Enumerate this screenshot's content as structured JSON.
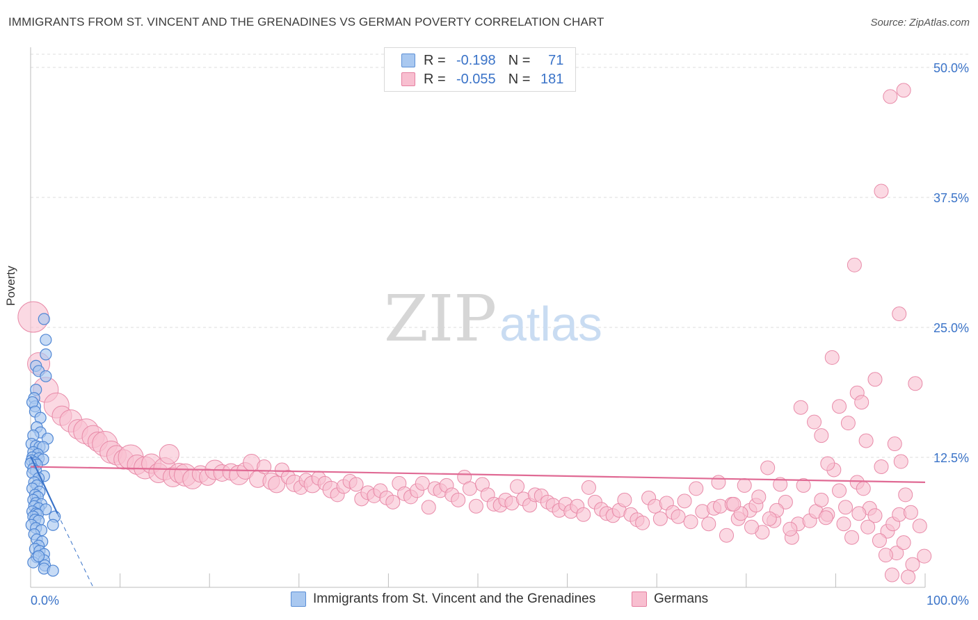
{
  "header": {
    "title": "IMMIGRANTS FROM ST. VINCENT AND THE GRENADINES VS GERMAN POVERTY CORRELATION CHART",
    "source": "Source: ZipAtlas.com"
  },
  "watermark": {
    "zip": "ZIP",
    "atlas": "atlas"
  },
  "legend": {
    "r_label": "R =",
    "n_label": "N =",
    "series": [
      {
        "r": "-0.198",
        "n": "71",
        "color": "#a9c8f0",
        "border": "#5b8fd6"
      },
      {
        "r": "-0.055",
        "n": "181",
        "color": "#f8bfd0",
        "border": "#e57fa0"
      }
    ]
  },
  "chart_data": {
    "type": "scatter",
    "ylabel": "Poverty",
    "xlim": [
      0,
      100
    ],
    "ylim": [
      0,
      50
    ],
    "x_tick_labels": [
      "0.0%",
      "100.0%"
    ],
    "y_ticks": [
      12.5,
      25.0,
      37.5,
      50.0
    ],
    "y_tick_labels": [
      "12.5%",
      "25.0%",
      "37.5%",
      "50.0%"
    ],
    "grid": "horizontal-dashed",
    "series": [
      {
        "name": "Immigrants from St. Vincent and the Grenadines",
        "color": "#a9c8f0",
        "stroke": "#4f86d4",
        "line_color": "#3a73c8",
        "trend": {
          "x": [
            0,
            3.0
          ],
          "y": [
            12.6,
            7.1
          ],
          "dashed_to": [
            7.0,
            0
          ]
        },
        "points": [
          [
            1.5,
            25.8
          ],
          [
            1.7,
            23.8
          ],
          [
            1.7,
            22.4
          ],
          [
            0.6,
            21.3
          ],
          [
            0.9,
            20.8
          ],
          [
            1.7,
            20.3
          ],
          [
            0.6,
            19.0
          ],
          [
            0.4,
            18.2
          ],
          [
            0.5,
            17.4
          ],
          [
            0.2,
            17.8
          ],
          [
            0.5,
            16.9
          ],
          [
            1.1,
            16.3
          ],
          [
            0.7,
            15.4
          ],
          [
            1.1,
            14.9
          ],
          [
            0.3,
            14.6
          ],
          [
            1.9,
            14.3
          ],
          [
            0.1,
            13.8
          ],
          [
            0.6,
            13.6
          ],
          [
            1.0,
            13.5
          ],
          [
            1.4,
            13.5
          ],
          [
            0.3,
            13.0
          ],
          [
            0.8,
            12.8
          ],
          [
            0.2,
            12.5
          ],
          [
            0.9,
            12.4
          ],
          [
            1.4,
            12.3
          ],
          [
            0.1,
            12.2
          ],
          [
            0.5,
            12.0
          ],
          [
            0.7,
            11.8
          ],
          [
            0.0,
            11.9
          ],
          [
            0.3,
            11.4
          ],
          [
            0.6,
            11.2
          ],
          [
            0.2,
            11.0
          ],
          [
            1.5,
            10.7
          ],
          [
            0.9,
            10.5
          ],
          [
            0.4,
            10.1
          ],
          [
            0.7,
            9.8
          ],
          [
            0.2,
            9.5
          ],
          [
            1.0,
            9.2
          ],
          [
            0.5,
            8.9
          ],
          [
            0.8,
            8.7
          ],
          [
            0.3,
            8.4
          ],
          [
            0.6,
            8.1
          ],
          [
            1.2,
            8.0
          ],
          [
            0.4,
            7.8
          ],
          [
            0.9,
            7.6
          ],
          [
            1.7,
            7.5
          ],
          [
            0.2,
            7.3
          ],
          [
            0.6,
            7.1
          ],
          [
            0.8,
            7.0
          ],
          [
            0.3,
            6.8
          ],
          [
            2.7,
            6.8
          ],
          [
            0.5,
            6.5
          ],
          [
            0.9,
            6.4
          ],
          [
            2.5,
            6.0
          ],
          [
            0.1,
            6.0
          ],
          [
            0.6,
            5.7
          ],
          [
            1.2,
            5.5
          ],
          [
            0.4,
            5.1
          ],
          [
            0.7,
            4.6
          ],
          [
            1.3,
            4.4
          ],
          [
            0.9,
            4.0
          ],
          [
            0.5,
            3.7
          ],
          [
            1.0,
            3.5
          ],
          [
            1.5,
            3.2
          ],
          [
            0.7,
            2.9
          ],
          [
            1.5,
            2.6
          ],
          [
            1.6,
            2.1
          ],
          [
            1.5,
            1.8
          ],
          [
            2.5,
            1.6
          ],
          [
            0.3,
            2.4
          ],
          [
            0.9,
            3.0
          ]
        ]
      },
      {
        "name": "Germans",
        "color": "#f8bfd0",
        "stroke": "#e88aa8",
        "line_color": "#e06a94",
        "trend": {
          "x": [
            0,
            100
          ],
          "y": [
            11.6,
            10.1
          ]
        },
        "points": [
          [
            0.3,
            26.0,
            22
          ],
          [
            0.9,
            21.5,
            16
          ],
          [
            1.7,
            19.0,
            18
          ],
          [
            2.9,
            17.5,
            18
          ],
          [
            3.5,
            16.5,
            14
          ],
          [
            4.5,
            16.0,
            16
          ],
          [
            5.3,
            15.2,
            14
          ],
          [
            6.2,
            15.0,
            18
          ],
          [
            7.0,
            14.5,
            16
          ],
          [
            7.5,
            14.0,
            14
          ],
          [
            8.3,
            13.8,
            18
          ],
          [
            9.0,
            13.0,
            16
          ],
          [
            9.6,
            12.7,
            14
          ],
          [
            10.4,
            12.3,
            14
          ],
          [
            11.2,
            12.5,
            18
          ],
          [
            11.9,
            11.8,
            14
          ],
          [
            12.8,
            11.5,
            16
          ],
          [
            13.5,
            11.9,
            14
          ],
          [
            14.3,
            11.0,
            14
          ],
          [
            15.0,
            11.4,
            16
          ],
          [
            15.9,
            10.6,
            14
          ],
          [
            16.6,
            11.0,
            14
          ],
          [
            17.3,
            10.8,
            16
          ],
          [
            18.1,
            10.4,
            14
          ],
          [
            15.5,
            12.8,
            14
          ],
          [
            19.0,
            10.9,
            12
          ],
          [
            19.8,
            10.6,
            12
          ],
          [
            20.6,
            11.3,
            14
          ],
          [
            21.4,
            11.0,
            12
          ],
          [
            22.4,
            11.1,
            12
          ],
          [
            23.3,
            10.8,
            14
          ],
          [
            24.0,
            11.2,
            12
          ],
          [
            24.7,
            12.0,
            12
          ],
          [
            25.4,
            10.4,
            12
          ],
          [
            26.1,
            11.6,
            10
          ],
          [
            26.9,
            10.2,
            12
          ],
          [
            27.5,
            9.9,
            12
          ],
          [
            28.1,
            11.3,
            10
          ],
          [
            28.8,
            10.6,
            10
          ],
          [
            29.5,
            10.0,
            12
          ],
          [
            30.2,
            9.6,
            10
          ],
          [
            30.8,
            10.3,
            10
          ],
          [
            31.5,
            9.9,
            12
          ],
          [
            32.2,
            10.5,
            10
          ],
          [
            32.9,
            10.0,
            10
          ],
          [
            33.6,
            9.4,
            12
          ],
          [
            34.3,
            8.9,
            10
          ],
          [
            35.0,
            9.7,
            10
          ],
          [
            35.7,
            10.2,
            10
          ],
          [
            36.4,
            9.9,
            10
          ],
          [
            37.0,
            8.5,
            10
          ],
          [
            37.7,
            9.1,
            10
          ],
          [
            38.4,
            8.8,
            10
          ],
          [
            39.1,
            9.3,
            10
          ],
          [
            39.8,
            8.6,
            10
          ],
          [
            40.5,
            8.2,
            10
          ],
          [
            41.2,
            10.0,
            10
          ],
          [
            41.8,
            9.0,
            10
          ],
          [
            42.5,
            8.7,
            10
          ],
          [
            43.2,
            9.3,
            10
          ],
          [
            43.8,
            10.0,
            10
          ],
          [
            44.5,
            7.7,
            10
          ],
          [
            45.2,
            9.5,
            10
          ],
          [
            45.8,
            9.3,
            10
          ],
          [
            46.5,
            9.8,
            10
          ],
          [
            47.1,
            8.9,
            10
          ],
          [
            47.8,
            8.4,
            10
          ],
          [
            48.5,
            10.6,
            10
          ],
          [
            49.1,
            9.5,
            10
          ],
          [
            49.8,
            7.8,
            10
          ],
          [
            50.5,
            9.9,
            10
          ],
          [
            51.1,
            8.9,
            10
          ],
          [
            51.8,
            8.0,
            10
          ],
          [
            52.5,
            7.9,
            10
          ],
          [
            53.1,
            8.4,
            10
          ],
          [
            53.8,
            8.1,
            10
          ],
          [
            54.4,
            9.7,
            10
          ],
          [
            55.1,
            8.5,
            10
          ],
          [
            55.8,
            7.9,
            10
          ],
          [
            56.4,
            8.9,
            10
          ],
          [
            57.1,
            8.8,
            10
          ],
          [
            57.8,
            8.2,
            10
          ],
          [
            58.4,
            7.9,
            10
          ],
          [
            59.1,
            7.4,
            10
          ],
          [
            59.8,
            8.0,
            10
          ],
          [
            60.4,
            7.3,
            10
          ],
          [
            61.1,
            7.8,
            10
          ],
          [
            61.8,
            7.0,
            10
          ],
          [
            62.4,
            9.6,
            10
          ],
          [
            63.1,
            8.2,
            10
          ],
          [
            63.8,
            7.5,
            10
          ],
          [
            64.4,
            7.1,
            10
          ],
          [
            65.1,
            6.9,
            10
          ],
          [
            65.8,
            7.4,
            10
          ],
          [
            66.4,
            8.4,
            10
          ],
          [
            67.1,
            7.0,
            10
          ],
          [
            67.8,
            6.5,
            10
          ],
          [
            68.4,
            6.2,
            10
          ],
          [
            69.1,
            8.6,
            10
          ],
          [
            69.8,
            7.8,
            10
          ],
          [
            70.4,
            6.6,
            10
          ],
          [
            71.1,
            8.1,
            10
          ],
          [
            71.8,
            7.2,
            10
          ],
          [
            72.4,
            6.8,
            10
          ],
          [
            73.1,
            8.3,
            10
          ],
          [
            73.8,
            6.3,
            10
          ],
          [
            74.4,
            9.5,
            10
          ],
          [
            75.1,
            7.3,
            10
          ],
          [
            75.8,
            6.1,
            10
          ],
          [
            76.4,
            7.6,
            10
          ],
          [
            77.1,
            7.8,
            10
          ],
          [
            77.8,
            5.0,
            10
          ],
          [
            78.4,
            8.0,
            10
          ],
          [
            79.1,
            6.6,
            10
          ],
          [
            79.8,
            9.8,
            10
          ],
          [
            80.4,
            7.4,
            10
          ],
          [
            81.1,
            7.9,
            10
          ],
          [
            81.8,
            5.3,
            10
          ],
          [
            82.4,
            11.5,
            10
          ],
          [
            83.1,
            6.4,
            10
          ],
          [
            83.8,
            9.9,
            10
          ],
          [
            84.4,
            8.2,
            10
          ],
          [
            85.1,
            4.8,
            10
          ],
          [
            85.8,
            6.1,
            10
          ],
          [
            86.4,
            9.8,
            10
          ],
          [
            87.1,
            6.4,
            10
          ],
          [
            87.8,
            7.3,
            10
          ],
          [
            88.4,
            8.4,
            10
          ],
          [
            89.1,
            7.0,
            10
          ],
          [
            89.8,
            11.3,
            10
          ],
          [
            90.4,
            9.3,
            10
          ],
          [
            91.1,
            7.7,
            10
          ],
          [
            91.8,
            4.8,
            10
          ],
          [
            92.4,
            10.1,
            10
          ],
          [
            93.1,
            9.5,
            10
          ],
          [
            93.8,
            7.6,
            10
          ],
          [
            94.4,
            6.9,
            10
          ],
          [
            95.1,
            11.6,
            10
          ],
          [
            95.8,
            5.4,
            10
          ],
          [
            96.4,
            6.1,
            10
          ],
          [
            97.1,
            7.0,
            10
          ],
          [
            97.8,
            8.9,
            10
          ],
          [
            98.4,
            7.2,
            10
          ],
          [
            86.1,
            17.3,
            10
          ],
          [
            87.6,
            15.9,
            10
          ],
          [
            88.4,
            14.6,
            10
          ],
          [
            89.1,
            11.9,
            10
          ],
          [
            90.4,
            17.4,
            10
          ],
          [
            91.4,
            15.8,
            10
          ],
          [
            92.4,
            18.7,
            10
          ],
          [
            92.9,
            17.8,
            10
          ],
          [
            93.4,
            14.1,
            10
          ],
          [
            94.4,
            20.0,
            10
          ],
          [
            95.1,
            38.1,
            10
          ],
          [
            96.1,
            47.2,
            10
          ],
          [
            97.6,
            47.8,
            10
          ],
          [
            97.1,
            26.3,
            10
          ],
          [
            96.6,
            13.8,
            10
          ],
          [
            97.3,
            12.1,
            10
          ],
          [
            92.1,
            31.0,
            10
          ],
          [
            89.6,
            22.1,
            10
          ],
          [
            98.9,
            19.6,
            10
          ],
          [
            99.4,
            5.9,
            10
          ],
          [
            99.9,
            3.0,
            10
          ],
          [
            96.8,
            3.3,
            10
          ],
          [
            94.9,
            4.5,
            10
          ],
          [
            96.3,
            1.2,
            10
          ],
          [
            98.6,
            2.2,
            10
          ],
          [
            98.1,
            1.0,
            10
          ],
          [
            97.6,
            4.3,
            10
          ],
          [
            95.6,
            3.1,
            10
          ],
          [
            93.6,
            5.8,
            10
          ],
          [
            92.6,
            7.1,
            10
          ],
          [
            90.9,
            6.1,
            10
          ],
          [
            88.9,
            6.7,
            10
          ],
          [
            84.9,
            5.6,
            10
          ],
          [
            83.4,
            7.4,
            10
          ],
          [
            82.6,
            6.6,
            10
          ],
          [
            81.4,
            8.7,
            10
          ],
          [
            80.6,
            5.8,
            10
          ],
          [
            79.4,
            7.1,
            10
          ],
          [
            78.6,
            8.0,
            10
          ],
          [
            76.9,
            10.1,
            10
          ]
        ]
      }
    ]
  },
  "bottom_legend": {
    "items": [
      {
        "label": "Immigrants from St. Vincent and the Grenadines",
        "color": "#a9c8f0",
        "border": "#5b8fd6"
      },
      {
        "label": "Germans",
        "color": "#f8bfd0",
        "border": "#e57fa0"
      }
    ]
  }
}
